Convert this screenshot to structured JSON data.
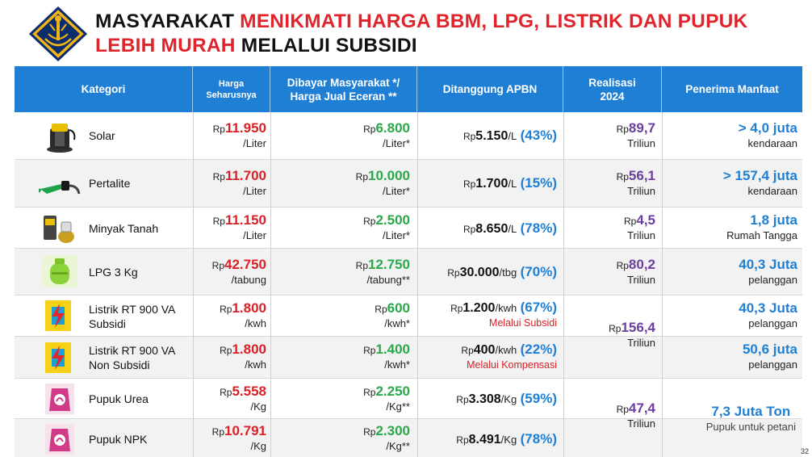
{
  "title": {
    "line1_black": "MASYARAKAT ",
    "line1_red": "MENIKMATI HARGA BBM, LPG, LISTRIK DAN PUPUK",
    "line2_red": "LEBIH MURAH",
    "line2_black": " MELALUI SUBSIDI"
  },
  "headers": {
    "kategori": "Kategori",
    "harga": "Harga Seharusnya",
    "dibayar": "Dibayar Masyarakat */ Harga Jual Eceran **",
    "ditanggung": "Ditanggung APBN",
    "realisasi": "Realisasi 2024",
    "penerima": "Penerima Manfaat"
  },
  "rows": [
    {
      "kategori": "Solar",
      "harga_rp": "Rp",
      "harga": "11.950",
      "harga_unit": "/Liter",
      "bayar_rp": "Rp",
      "bayar": "6.800",
      "bayar_unit": "/Liter*",
      "apbn_rp": "Rp",
      "apbn": "5.150",
      "apbn_unit": "/L",
      "apbn_pct": "(43%)",
      "real_rp": "Rp",
      "real": "89,7",
      "real_unit": "Triliun",
      "penerima": "> 4,0 juta",
      "penerima_unit": "kendaraan"
    },
    {
      "kategori": "Pertalite",
      "harga_rp": "Rp",
      "harga": "11.700",
      "harga_unit": "/Liter",
      "bayar_rp": "Rp",
      "bayar": "10.000",
      "bayar_unit": "/Liter*",
      "apbn_rp": "Rp",
      "apbn": "1.700",
      "apbn_unit": "/L",
      "apbn_pct": "(15%)",
      "real_rp": "Rp",
      "real": "56,1",
      "real_unit": "Triliun",
      "penerima": "> 157,4 juta",
      "penerima_unit": "kendaraan"
    },
    {
      "kategori": "Minyak Tanah",
      "harga_rp": "Rp",
      "harga": "11.150",
      "harga_unit": "/Liter",
      "bayar_rp": "Rp",
      "bayar": "2.500",
      "bayar_unit": "/Liter*",
      "apbn_rp": "Rp",
      "apbn": "8.650",
      "apbn_unit": "/L",
      "apbn_pct": "(78%)",
      "real_rp": "Rp",
      "real": "4,5",
      "real_unit": "Triliun",
      "penerima": "1,8 juta",
      "penerima_unit": "Rumah Tangga"
    },
    {
      "kategori": "LPG 3 Kg",
      "harga_rp": "Rp",
      "harga": "42.750",
      "harga_unit": "/tabung",
      "bayar_rp": "Rp",
      "bayar": "12.750",
      "bayar_unit": "/tabung**",
      "apbn_rp": "Rp",
      "apbn": "30.000",
      "apbn_unit": "/tbg",
      "apbn_pct": "(70%)",
      "real_rp": "Rp",
      "real": "80,2",
      "real_unit": "Triliun",
      "penerima": "40,3 Juta",
      "penerima_unit": "pelanggan"
    },
    {
      "kategori_1": "Listrik RT 900 VA",
      "kategori_2": "Subsidi",
      "harga_rp": "Rp",
      "harga": "1.800",
      "harga_unit": "/kwh",
      "bayar_rp": "Rp",
      "bayar": "600",
      "bayar_unit": "/kwh*",
      "apbn_rp": "Rp",
      "apbn": "1.200",
      "apbn_unit": "/kwh",
      "apbn_pct": "(67%)",
      "apbn_note": "Melalui Subsidi",
      "penerima": "40,3 Juta",
      "penerima_unit": "pelanggan"
    },
    {
      "kategori_1": "Listrik RT 900 VA",
      "kategori_2": "Non Subsidi",
      "harga_rp": "Rp",
      "harga": "1.800",
      "harga_unit": "/kwh",
      "bayar_rp": "Rp",
      "bayar": "1.400",
      "bayar_unit": "/kwh*",
      "apbn_rp": "Rp",
      "apbn": "400",
      "apbn_unit": "/kwh",
      "apbn_pct": "(22%)",
      "apbn_note": "Melalui Kompensasi",
      "penerima": "50,6 juta",
      "penerima_unit": "pelanggan"
    },
    {
      "kategori": "Pupuk Urea",
      "harga_rp": "Rp",
      "harga": "5.558",
      "harga_unit": "/Kg",
      "bayar_rp": "Rp",
      "bayar": "2.250",
      "bayar_unit": "/Kg**",
      "apbn_rp": "Rp",
      "apbn": "3.308",
      "apbn_unit": "/Kg",
      "apbn_pct": "(59%)"
    },
    {
      "kategori": "Pupuk NPK",
      "harga_rp": "Rp",
      "harga": "10.791",
      "harga_unit": "/Kg",
      "bayar_rp": "Rp",
      "bayar": "2.300",
      "bayar_unit": "/Kg**",
      "apbn_rp": "Rp",
      "apbn": "8.491",
      "apbn_unit": "/Kg",
      "apbn_pct": "(78%)"
    }
  ],
  "listrik_realisasi": {
    "rp": "Rp",
    "value": "156,4",
    "unit": "Triliun"
  },
  "pupuk_realisasi": {
    "rp": "Rp",
    "value": "47,4",
    "unit": "Triliun"
  },
  "pupuk_penerima": {
    "value": "7,3 Juta Ton",
    "unit": "Pupuk untuk petani"
  },
  "page_number": "32",
  "colors": {
    "header_blue": "#1f7fd4",
    "red": "#d92127",
    "green": "#2aa84a",
    "purple": "#6a3fa0"
  },
  "icons": [
    "solar-pump-icon",
    "pertalite-nozzle-icon",
    "kerosene-pump-icon",
    "lpg-cylinder-icon",
    "pln-lightning-icon",
    "fertilizer-bag-icon"
  ]
}
